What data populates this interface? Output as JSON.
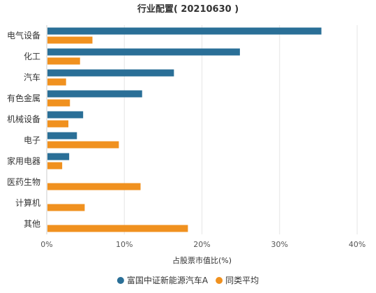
{
  "chart_data": {
    "type": "bar",
    "orientation": "horizontal",
    "title": "行业配置( 20210630 )",
    "xlabel": "占股票市值比(%)",
    "ylabel": "",
    "xlim": [
      0,
      40
    ],
    "x_ticks": [
      "0%",
      "10%",
      "20%",
      "30%",
      "40%"
    ],
    "grid": true,
    "legend_position": "bottom",
    "categories": [
      "电气设备",
      "化工",
      "汽车",
      "有色金属",
      "机械设备",
      "电子",
      "家用电器",
      "医药生物",
      "计算机",
      "其他"
    ],
    "series": [
      {
        "name": "富国中证新能源汽车A",
        "color": "#2a6f97",
        "values": [
          35.3,
          24.8,
          16.3,
          12.2,
          4.6,
          3.8,
          2.8,
          0,
          0,
          0
        ]
      },
      {
        "name": "同类平均",
        "color": "#f0911f",
        "values": [
          5.8,
          4.2,
          2.4,
          2.9,
          2.7,
          9.2,
          1.9,
          12.0,
          4.8,
          18.1
        ]
      }
    ]
  }
}
